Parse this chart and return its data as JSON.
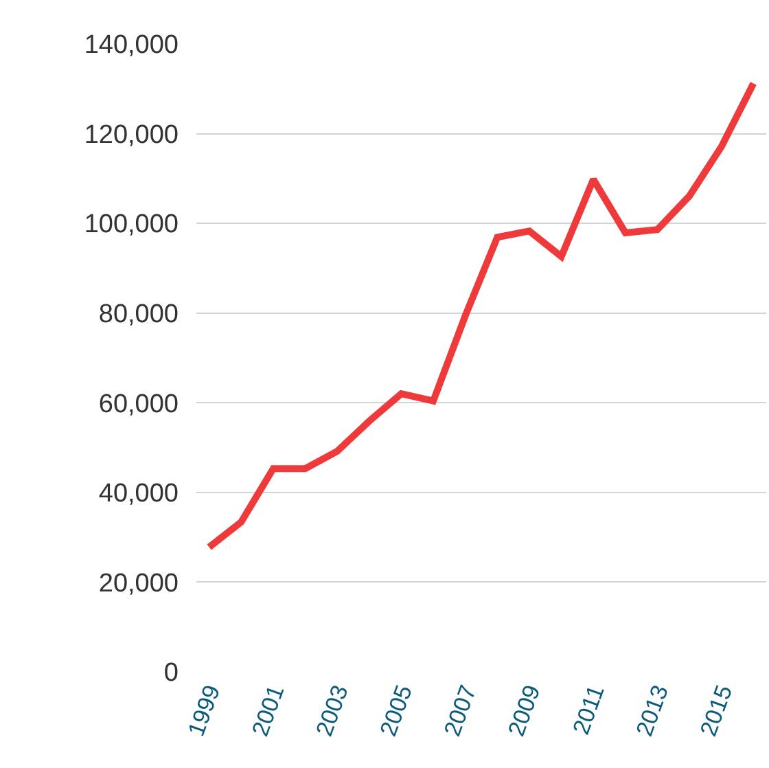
{
  "chart_data": {
    "type": "line",
    "x": [
      1999,
      2000,
      2001,
      2002,
      2003,
      2004,
      2005,
      2006,
      2007,
      2008,
      2009,
      2010,
      2011,
      2012,
      2013,
      2014,
      2015,
      2016
    ],
    "series": [
      {
        "color": "#ee3a3a",
        "values": [
          27800,
          33400,
          45300,
          45300,
          49200,
          55900,
          62000,
          60400,
          79400,
          96900,
          98300,
          92600,
          109800,
          97900,
          98600,
          106100,
          117100,
          131200
        ]
      }
    ],
    "xlim": [
      1998.6,
      2016.4
    ],
    "xticks": [
      1999,
      2001,
      2003,
      2005,
      2007,
      2009,
      2011,
      2013,
      2015
    ],
    "ylim": [
      0,
      140000
    ],
    "yticks": [
      {
        "value": 0,
        "label": "0"
      },
      {
        "value": 20000,
        "label": "20,000"
      },
      {
        "value": 40000,
        "label": "40,000"
      },
      {
        "value": 60000,
        "label": "60,000"
      },
      {
        "value": 80000,
        "label": "80,000"
      },
      {
        "value": 100000,
        "label": "100,000"
      },
      {
        "value": 120000,
        "label": "120,000"
      },
      {
        "value": 140000,
        "label": "140,000"
      }
    ],
    "grid": "y",
    "marker": "none",
    "line_style": "solid",
    "legend": false
  }
}
